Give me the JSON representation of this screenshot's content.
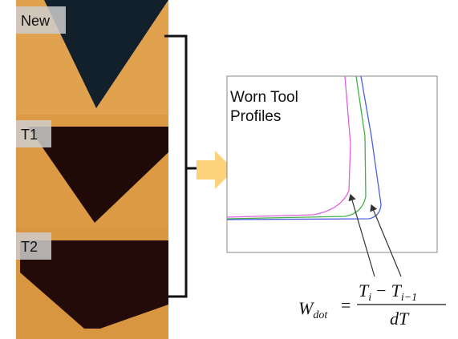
{
  "panels": [
    {
      "label": "New"
    },
    {
      "label": "T1"
    },
    {
      "label": "T2"
    }
  ],
  "plot": {
    "title_lines": [
      "Worn Tool",
      "Profiles"
    ]
  },
  "formula": {
    "lhs": "W",
    "lhs_sub": "dot",
    "equals": "=",
    "num_a": "T",
    "num_a_sub": "i",
    "minus": "−",
    "num_b": "T",
    "num_b_sub": "i−1",
    "den": "dT"
  }
}
